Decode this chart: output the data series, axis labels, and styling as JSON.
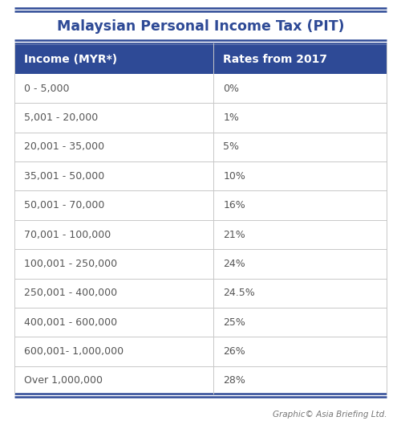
{
  "title": "Malaysian Personal Income Tax (PIT)",
  "col1_header": "Income (MYR*)",
  "col2_header": "Rates from 2017",
  "rows": [
    [
      "0 - 5,000",
      "0%"
    ],
    [
      "5,001 - 20,000",
      "1%"
    ],
    [
      "20,001 - 35,000",
      "5%"
    ],
    [
      "35,001 - 50,000",
      "10%"
    ],
    [
      "50,001 - 70,000",
      "16%"
    ],
    [
      "70,001 - 100,000",
      "21%"
    ],
    [
      "100,001 - 250,000",
      "24%"
    ],
    [
      "250,001 - 400,000",
      "24.5%"
    ],
    [
      "400,001 - 600,000",
      "25%"
    ],
    [
      "600,001- 1,000,000",
      "26%"
    ],
    [
      "Over 1,000,000",
      "28%"
    ]
  ],
  "header_bg_color": "#2E4A96",
  "header_text_color": "#FFFFFF",
  "row_bg_color": "#FFFFFF",
  "border_color": "#C8C8C8",
  "title_color": "#2E4A96",
  "footer_text": "Graphic© Asia Briefing Ltd.",
  "background_color": "#FFFFFF",
  "divider_color": "#2E4A96",
  "text_color": "#555555",
  "title_fontsize": 12.5,
  "header_fontsize": 10,
  "row_fontsize": 9,
  "footer_fontsize": 7.5
}
